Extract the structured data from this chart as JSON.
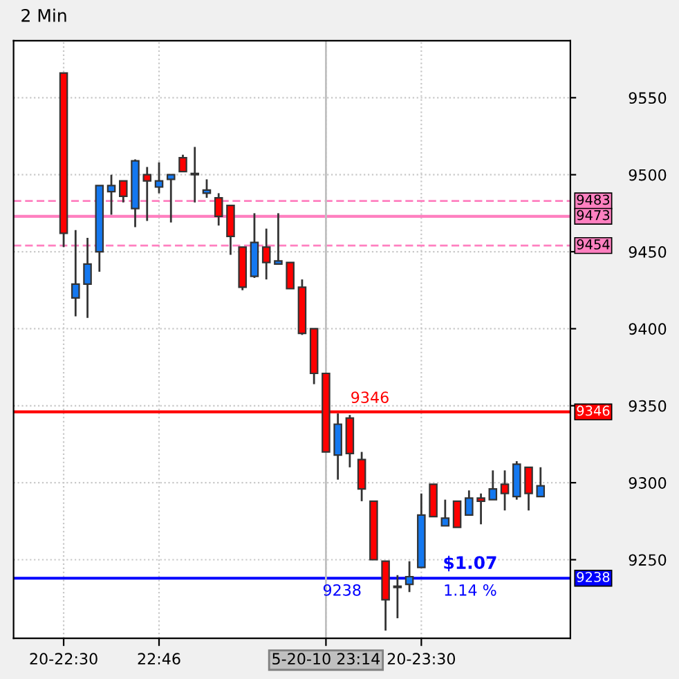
{
  "chart_data": {
    "type": "candlestick",
    "title": "2 Min",
    "categories": [
      "20-22:30",
      null,
      null,
      null,
      null,
      null,
      null,
      null,
      "22:46",
      null,
      null,
      null,
      null,
      null,
      null,
      null,
      null,
      null,
      null,
      null,
      null,
      null,
      "5-20-10 23:14",
      null,
      null,
      null,
      null,
      null,
      null,
      null,
      "20-23:30",
      null,
      null,
      null,
      null,
      null,
      null,
      null,
      null,
      null,
      null
    ],
    "ohlc": [
      [
        9566,
        9566,
        9453,
        9462
      ],
      [
        9420,
        9464,
        9408,
        9429
      ],
      [
        9429,
        9459,
        9407,
        9442
      ],
      [
        9450,
        9493,
        9437,
        9493
      ],
      [
        9489,
        9500,
        9474,
        9493
      ],
      [
        9496,
        9496,
        9482,
        9486
      ],
      [
        9478,
        9510,
        9466,
        9509
      ],
      [
        9500,
        9505,
        9470,
        9496
      ],
      [
        9492,
        9508,
        9488,
        9496
      ],
      [
        9497,
        9500,
        9469,
        9500
      ],
      [
        9511,
        9513,
        9502,
        9502
      ],
      [
        9500,
        9518,
        9482,
        9500
      ],
      [
        9488,
        9497,
        9485,
        9490
      ],
      [
        9485,
        9488,
        9467,
        9473
      ],
      [
        9480,
        9480,
        9448,
        9460
      ],
      [
        9453,
        9453,
        9425,
        9427
      ],
      [
        9434,
        9475,
        9433,
        9456
      ],
      [
        9453,
        9465,
        9432,
        9443
      ],
      [
        9442,
        9475,
        9442,
        9444
      ],
      [
        9443,
        9443,
        9426,
        9426
      ],
      [
        9427,
        9432,
        9396,
        9397
      ],
      [
        9400,
        9400,
        9364,
        9371
      ],
      [
        9371,
        9371,
        9320,
        9320
      ],
      [
        9318,
        9345,
        9302,
        9338
      ],
      [
        9342,
        9344,
        9310,
        9319
      ],
      [
        9315,
        9320,
        9288,
        9296
      ],
      [
        9288,
        9288,
        9250,
        9250
      ],
      [
        9249,
        9249,
        9204,
        9224
      ],
      [
        9232,
        9240,
        9212,
        9232
      ],
      [
        9234,
        9249,
        9229,
        9239
      ],
      [
        9245,
        9293,
        9245,
        9279
      ],
      [
        9299,
        9299,
        9278,
        9278
      ],
      [
        9272,
        9289,
        9272,
        9277
      ],
      [
        9288,
        9288,
        9271,
        9271
      ],
      [
        9279,
        9295,
        9279,
        9290
      ],
      [
        9290,
        9293,
        9273,
        9288
      ],
      [
        9289,
        9308,
        9289,
        9296
      ],
      [
        9299,
        9308,
        9282,
        9293
      ],
      [
        9291,
        9314,
        9289,
        9312
      ],
      [
        9310,
        9310,
        9282,
        9293
      ],
      [
        9291,
        9310,
        9291,
        9298
      ]
    ],
    "colors": [
      "#ff0000",
      "#1478f0",
      "#1478f0",
      "#1478f0",
      "#1478f0",
      "#ff0000",
      "#1478f0",
      "#ff0000",
      "#1478f0",
      "#1478f0",
      "#ff0000",
      "#1478f0",
      "#1478f0",
      "#ff0000",
      "#ff0000",
      "#ff0000",
      "#1478f0",
      "#ff0000",
      "#1478f0",
      "#ff0000",
      "#ff0000",
      "#ff0000",
      "#ff0000",
      "#1478f0",
      "#ff0000",
      "#ff0000",
      "#ff0000",
      "#ff0000",
      "#1478f0",
      "#1478f0",
      "#1478f0",
      "#ff0000",
      "#1478f0",
      "#ff0000",
      "#1478f0",
      "#ff0000",
      "#1478f0",
      "#ff0000",
      "#1478f0",
      "#ff0000",
      "#1478f0"
    ],
    "ylim": [
      9199,
      9587
    ],
    "yticks": [
      9250,
      9300,
      9350,
      9400,
      9450,
      9500,
      9550
    ],
    "grid": true,
    "ref_lines": [
      {
        "axis": "y",
        "value": 9483,
        "label": "9483",
        "color": "#ff80c0",
        "line_style": "dashed"
      },
      {
        "axis": "y",
        "value": 9473,
        "label": "9473",
        "color": "#ff80c0",
        "line_style": "solid"
      },
      {
        "axis": "y",
        "value": 9454,
        "label": "9454",
        "color": "#ff80c0",
        "line_style": "dashed"
      },
      {
        "axis": "y",
        "value": 9346,
        "label": "9346",
        "color": "#ff0000",
        "line_style": "solid"
      },
      {
        "axis": "y",
        "value": 9238,
        "label": "9238",
        "color": "#0000ff",
        "line_style": "solid"
      },
      {
        "axis": "x",
        "value": "5-20-10 23:14",
        "color": "#c0c0c0",
        "line_style": "solid"
      }
    ],
    "annotations": [
      {
        "text": "9346",
        "y": 9346
      },
      {
        "text": "9238",
        "y": 9238
      },
      {
        "text": "$1.07",
        "y": 9238
      },
      {
        "text": "1.14 %",
        "y": 9238
      }
    ]
  }
}
